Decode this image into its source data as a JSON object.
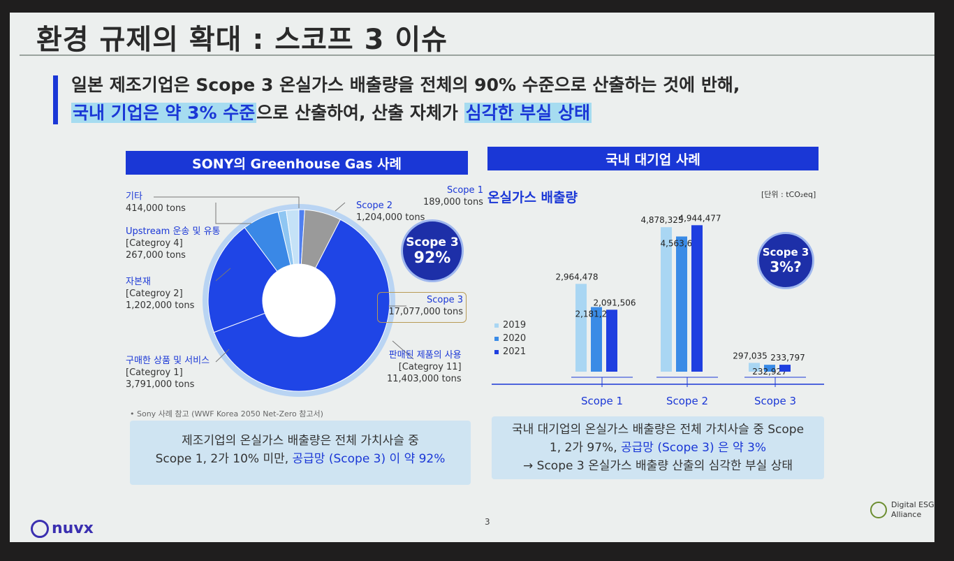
{
  "slide": {
    "title": "환경 규제의 확대 : 스코프 3 이슈",
    "lead_line1": "일본 제조기업은 Scope 3 온실가스 배출량을 전체의 90% 수준으로 산출하는 것에 반해,",
    "lead_line2_hl1": "국내 기업은 약 3% 수준",
    "lead_line2_mid": "으로 산출하여, 산출 자체가",
    "lead_line2_hl2": "심각한 부실 상태",
    "page_number": "3",
    "logo_left": "nuvx",
    "logo_right_line1": "Digital ESG",
    "logo_right_line2": "Alliance"
  },
  "left": {
    "header": "SONY의 Greenhouse Gas 사례",
    "badge_line1": "Scope 3",
    "badge_line2": "92%",
    "note": "• Sony 사례 참고 (WWF Korea 2050 Net-Zero 참고서)",
    "summary_line1": "제조기업의 온실가스 배출량은 전체 가치사슬 중",
    "summary_line2_a": "Scope 1, 2가  10% 미만, ",
    "summary_line2_b": "공급망 (Scope 3) 이 약 92%"
  },
  "right": {
    "header": "국내 대기업 사례",
    "chart_title": "온실가스 배출량",
    "unit": "[단위 : tCO₂eq]",
    "badge_line1": "Scope 3",
    "badge_line2": "3%?",
    "summary_line1": "국내 대기업의 온실가스 배출량은 전체 가치사슬 중 Scope",
    "summary_line2_a": "1, 2가 97%,  ",
    "summary_line2_b": "공급망 (Scope 3) 은 약 3%",
    "summary_line3": "→ Scope 3 온실가스 배출량 산출의 심각한 부실 상태"
  },
  "chart_data": [
    {
      "type": "pie",
      "title": "SONY의 Greenhouse Gas 사례",
      "slices": [
        {
          "name": "Scope 1",
          "value": 189000,
          "label": "189,000 tons",
          "color": "#4f7ff0"
        },
        {
          "name": "Scope 2",
          "value": 1204000,
          "label": "1,204,000 tons",
          "color": "#9a9a9a"
        },
        {
          "name": "판매된 제품의 사용",
          "sub": "[Categroy 11]",
          "value": 11403000,
          "label": "11,403,000 tons",
          "color": "#1f45e6"
        },
        {
          "name": "구매한 상품 및 서비스",
          "sub": "[Categroy 1]",
          "value": 3791000,
          "label": "3,791,000 tons",
          "color": "#1f45e6"
        },
        {
          "name": "자본재",
          "sub": "[Categroy 2]",
          "value": 1202000,
          "label": "1,202,000 tons",
          "color": "#3a88e6"
        },
        {
          "name": "Upstream 운송 및 유통",
          "sub": "[Categroy 4]",
          "value": 267000,
          "label": "267,000 tons",
          "color": "#8fc6f2"
        },
        {
          "name": "기타",
          "value": 414000,
          "label": "414,000 tons",
          "color": "#c5e2f7"
        }
      ],
      "scope3_total": {
        "name": "Scope 3",
        "label": "17,077,000 tons",
        "value": 17077000
      }
    },
    {
      "type": "bar",
      "title": "온실가스 배출량",
      "categories": [
        "Scope 1",
        "Scope 2",
        "Scope 3"
      ],
      "series": [
        {
          "name": "2019",
          "values": [
            2964478,
            4878325,
            297035
          ],
          "labels": [
            "2,964,478",
            "4,878,325",
            "297,035"
          ],
          "color": "#a9d6f3"
        },
        {
          "name": "2020",
          "values": [
            2181278,
            4563608,
            232927
          ],
          "labels": [
            "2,181,278",
            "4,563,608",
            "232,927"
          ],
          "color": "#3a8be6"
        },
        {
          "name": "2021",
          "values": [
            2091506,
            4944477,
            233797
          ],
          "labels": [
            "2,091,506",
            "4,944,477",
            "233,797"
          ],
          "color": "#1f3fe0"
        }
      ],
      "legend_position": "left"
    }
  ]
}
